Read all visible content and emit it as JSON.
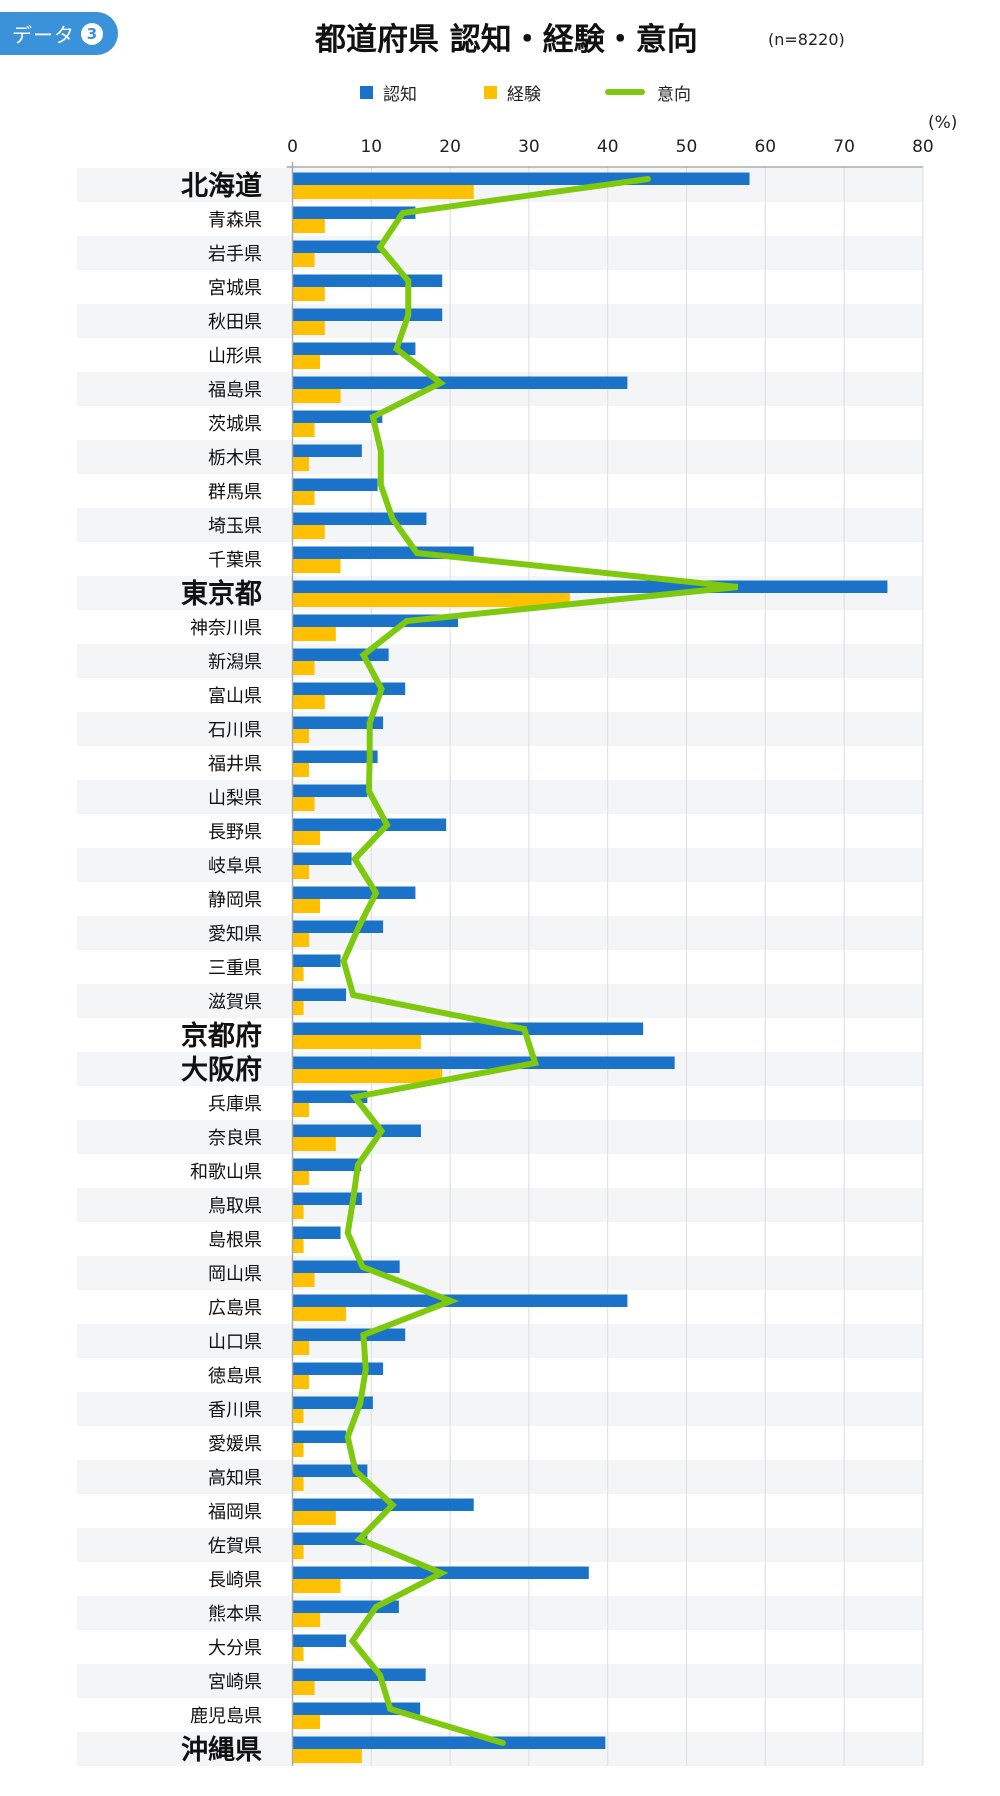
{
  "badge": {
    "label": "データ",
    "number": "3"
  },
  "header": {
    "title": "都道府県 認知・経験・意向",
    "sample": "(n=8220)"
  },
  "legend": [
    {
      "label": "認知",
      "type": "square",
      "color": "#1a73c8"
    },
    {
      "label": "経験",
      "type": "square",
      "color": "#ffc000"
    },
    {
      "label": "意向",
      "type": "line",
      "color": "#7ec90e"
    }
  ],
  "axis": {
    "unit": "(%)",
    "ticks": [
      "0",
      "10",
      "20",
      "30",
      "40",
      "50",
      "60",
      "70",
      "80"
    ]
  },
  "colors": {
    "awareness": "#1a73c8",
    "experience": "#ffc000",
    "intention": "#7ec90e",
    "band": "#f4f5f7",
    "grid": "#dddddd",
    "axis": "#aaaaaa"
  },
  "chart_data": {
    "type": "bar",
    "orientation": "horizontal",
    "title": "都道府県 認知・経験・意向",
    "subtitle": "(n=8220)",
    "xlabel": "(%)",
    "ylabel": "",
    "xlim": [
      0,
      80
    ],
    "xticks": [
      0,
      10,
      20,
      30,
      40,
      50,
      60,
      70,
      80
    ],
    "grid": true,
    "legend_position": "top",
    "categories": [
      "北海道",
      "青森県",
      "岩手県",
      "宮城県",
      "秋田県",
      "山形県",
      "福島県",
      "茨城県",
      "栃木県",
      "群馬県",
      "埼玉県",
      "千葉県",
      "東京都",
      "神奈川県",
      "新潟県",
      "富山県",
      "石川県",
      "福井県",
      "山梨県",
      "長野県",
      "岐阜県",
      "静岡県",
      "愛知県",
      "三重県",
      "滋賀県",
      "京都府",
      "大阪府",
      "兵庫県",
      "奈良県",
      "和歌山県",
      "鳥取県",
      "島根県",
      "岡山県",
      "広島県",
      "山口県",
      "徳島県",
      "香川県",
      "愛媛県",
      "高知県",
      "福岡県",
      "佐賀県",
      "長崎県",
      "熊本県",
      "大分県",
      "宮崎県",
      "鹿児島県",
      "沖縄県"
    ],
    "highlighted": [
      "北海道",
      "東京都",
      "京都府",
      "大阪府",
      "沖縄県"
    ],
    "series": [
      {
        "name": "認知",
        "type": "bar",
        "color": "#1a73c8",
        "values": [
          58.0,
          15.6,
          11.6,
          19.0,
          19.0,
          15.6,
          42.5,
          11.4,
          8.8,
          10.8,
          17.0,
          23.0,
          75.5,
          21.0,
          12.2,
          14.3,
          11.5,
          10.8,
          9.5,
          19.5,
          7.5,
          15.6,
          11.5,
          6.1,
          6.8,
          44.5,
          48.5,
          9.5,
          16.3,
          8.7,
          8.8,
          6.1,
          13.6,
          42.5,
          14.3,
          11.5,
          10.2,
          6.8,
          9.5,
          23.0,
          9.5,
          37.6,
          13.5,
          6.8,
          16.9,
          16.2,
          39.7
        ]
      },
      {
        "name": "経験",
        "type": "bar",
        "color": "#ffc000",
        "values": [
          23.0,
          4.1,
          2.8,
          4.1,
          4.1,
          3.5,
          6.1,
          2.8,
          2.1,
          2.8,
          4.1,
          6.1,
          35.2,
          5.5,
          2.8,
          4.1,
          2.1,
          2.1,
          2.8,
          3.5,
          2.1,
          3.5,
          2.1,
          1.4,
          1.4,
          16.3,
          19.0,
          2.1,
          5.5,
          2.1,
          1.4,
          1.4,
          2.8,
          6.8,
          2.1,
          2.1,
          1.4,
          1.4,
          1.4,
          5.5,
          1.4,
          6.1,
          3.5,
          1.4,
          2.8,
          3.5,
          8.8
        ]
      },
      {
        "name": "意向",
        "type": "line",
        "color": "#7ec90e",
        "values": [
          45.1,
          14.0,
          11.1,
          14.7,
          14.7,
          13.2,
          18.8,
          10.2,
          11.2,
          11.2,
          12.7,
          15.8,
          56.5,
          14.5,
          9.0,
          11.3,
          9.8,
          9.8,
          9.7,
          12.0,
          7.9,
          10.6,
          8.4,
          6.5,
          7.7,
          29.4,
          30.8,
          7.9,
          11.3,
          8.3,
          7.7,
          7.0,
          8.9,
          20.1,
          9.0,
          9.3,
          8.6,
          7.0,
          8.0,
          12.7,
          8.5,
          18.9,
          10.6,
          7.6,
          11.1,
          12.4,
          26.7
        ]
      }
    ]
  }
}
